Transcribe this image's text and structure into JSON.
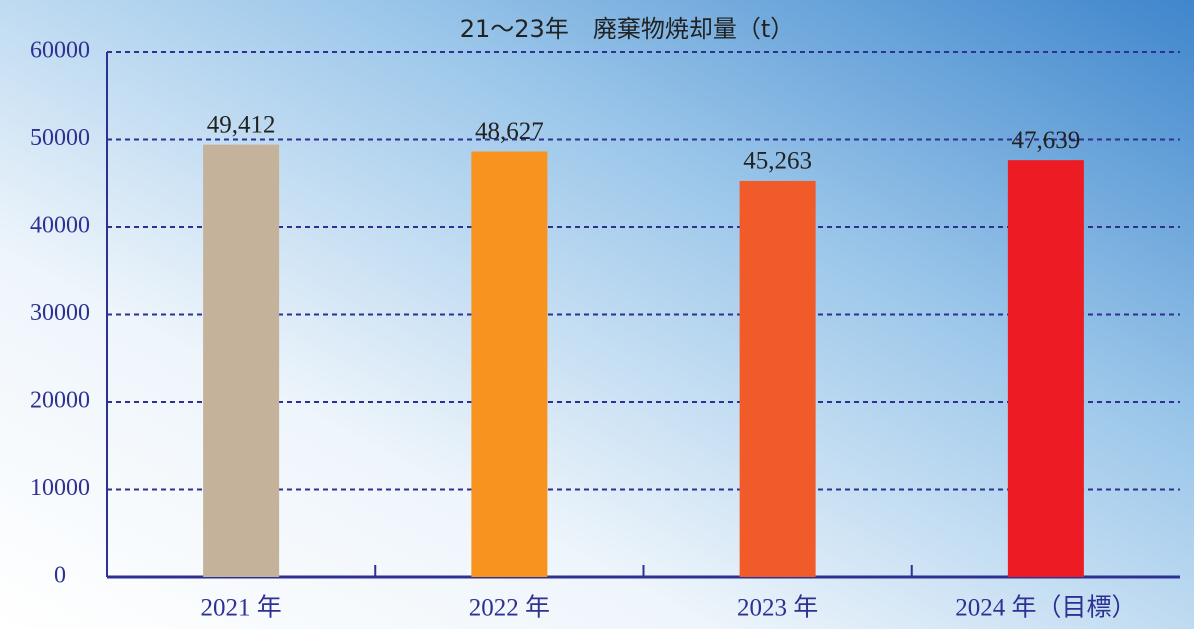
{
  "chart_data": {
    "type": "bar",
    "title": "21〜23年　廃棄物焼却量（t）",
    "categories": [
      "2021 年",
      "2022 年",
      "2023 年",
      "2024 年（目標）"
    ],
    "values": [
      49412,
      48627,
      45263,
      47639
    ],
    "value_labels": [
      "49,412",
      "48,627",
      "45,263",
      "47,639"
    ],
    "colors": [
      "#c4b29a",
      "#f7931e",
      "#f15a29",
      "#ed1c24"
    ],
    "ylim": [
      0,
      60000
    ],
    "yticks": [
      0,
      10000,
      20000,
      30000,
      40000,
      50000,
      60000
    ],
    "grid": true
  }
}
